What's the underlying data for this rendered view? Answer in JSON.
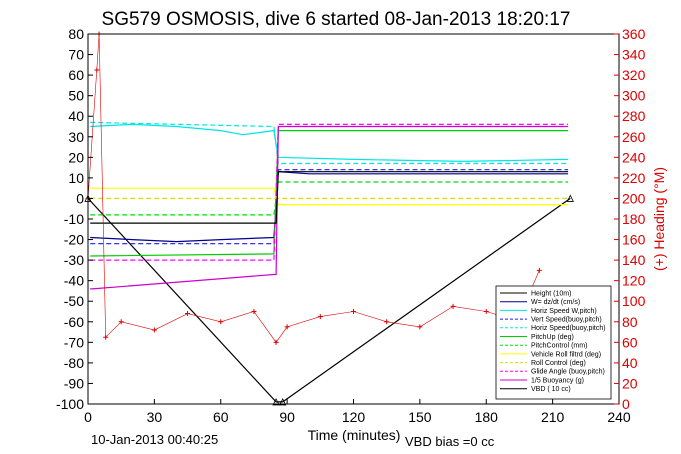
{
  "chart_data": {
    "type": "line",
    "title": "SG579 OSMOSIS, dive 6 started 08-Jan-2013 18:20:17",
    "xlabel": "Time (minutes)",
    "ylabel_right": "(+) Heading (°M)",
    "xlim": [
      0,
      240
    ],
    "ylim": [
      -100,
      80
    ],
    "ylim_right": [
      0,
      360
    ],
    "xticks": [
      0,
      30,
      60,
      90,
      120,
      150,
      180,
      210,
      240
    ],
    "yticks": [
      -100,
      -90,
      -80,
      -70,
      -60,
      -50,
      -40,
      -30,
      -20,
      -10,
      0,
      10,
      20,
      30,
      40,
      50,
      60,
      70,
      80
    ],
    "yticks_right": [
      0,
      20,
      40,
      60,
      80,
      100,
      120,
      140,
      160,
      180,
      200,
      220,
      240,
      260,
      280,
      300,
      320,
      340,
      360
    ],
    "footer_left": "10-Jan-2013 00:40:25",
    "footer_right": "VBD bias =0 cc",
    "legend_position": "lower-right",
    "colors": {
      "height": "#000000",
      "w": "#00008b",
      "horz_speed": "#00e5e5",
      "pitch": "#00cc00",
      "roll": "#ffff00",
      "glide": "#ff00ff",
      "buoyancy": "#cc00cc",
      "heading": "#dd0000"
    },
    "series": [
      {
        "name": "Height (10m)",
        "color": "#000000",
        "style": "triangle-markers",
        "x": [
          0,
          85,
          88,
          218
        ],
        "values": [
          0,
          -99,
          -99,
          0
        ]
      },
      {
        "name": "W= dz/dt (cm/s)",
        "color": "#00008b",
        "style": "solid",
        "x": [
          1,
          20,
          40,
          60,
          84,
          86,
          100,
          150,
          217
        ],
        "values": [
          -19,
          -20,
          -21,
          -20,
          -19,
          13,
          12,
          12,
          12
        ]
      },
      {
        "name": "Horiz Speed W,pitch)",
        "color": "#00e5e5",
        "style": "solid",
        "x": [
          1,
          20,
          40,
          60,
          70,
          84,
          86,
          120,
          170,
          217
        ],
        "values": [
          35,
          36,
          35,
          33,
          31,
          33,
          20,
          19,
          18,
          19
        ]
      },
      {
        "name": "Vert Speed(buoy,pitch)",
        "color": "#1a1aff",
        "style": "dashed",
        "x": [
          1,
          84,
          86,
          217
        ],
        "values": [
          -22,
          -22,
          14,
          14
        ]
      },
      {
        "name": "Horiz Speed(buoy,pitch)",
        "color": "#00e5e5",
        "style": "dashed",
        "x": [
          1,
          84,
          86,
          217
        ],
        "values": [
          37,
          35,
          17,
          17
        ]
      },
      {
        "name": "PitchUp (deg)",
        "color": "#00cc00",
        "style": "solid",
        "x": [
          1,
          84,
          86,
          217
        ],
        "values": [
          -28,
          -27,
          33,
          33
        ]
      },
      {
        "name": "PitchControl (mm)",
        "color": "#00dd00",
        "style": "dashed",
        "x": [
          1,
          84,
          86,
          217
        ],
        "values": [
          -8,
          -8,
          8,
          8
        ]
      },
      {
        "name": "Vehicle Roll filtrd (deg)",
        "color": "#ffff00",
        "style": "solid",
        "x": [
          1,
          84,
          86,
          217
        ],
        "values": [
          5,
          5,
          -3,
          -3
        ]
      },
      {
        "name": "Roll Control (deg)",
        "color": "#dddd00",
        "style": "dashed",
        "x": [
          1,
          84,
          86,
          217
        ],
        "values": [
          0,
          0,
          0,
          0
        ]
      },
      {
        "name": "Glide Angle (buoy,pitch)",
        "color": "#ff00ff",
        "style": "dashed",
        "x": [
          1,
          84,
          86,
          217
        ],
        "values": [
          -30,
          -30,
          36,
          36
        ]
      },
      {
        "name": "1/5 Buoyancy (g)",
        "color": "#cc00cc",
        "style": "solid",
        "x": [
          1,
          2,
          84,
          85,
          86,
          217
        ],
        "values": [
          -44,
          -44,
          -37,
          -37,
          35,
          35
        ]
      },
      {
        "name": "VBD ( 10 cc)",
        "color": "#000000",
        "style": "solid",
        "x": [
          1,
          84,
          85,
          86,
          217
        ],
        "values": [
          -12,
          -12,
          -12,
          13,
          13
        ]
      },
      {
        "name": "Heading",
        "color": "#dd0000",
        "style": "plus-markers",
        "axis": "right",
        "x": [
          0,
          4,
          5,
          8,
          15,
          30,
          45,
          60,
          75,
          85,
          90,
          105,
          120,
          135,
          150,
          165,
          180,
          195,
          200,
          204
        ],
        "values": [
          200,
          325,
          360,
          65,
          80,
          72,
          88,
          80,
          90,
          60,
          75,
          85,
          90,
          80,
          75,
          95,
          90,
          80,
          110,
          130
        ]
      }
    ]
  }
}
